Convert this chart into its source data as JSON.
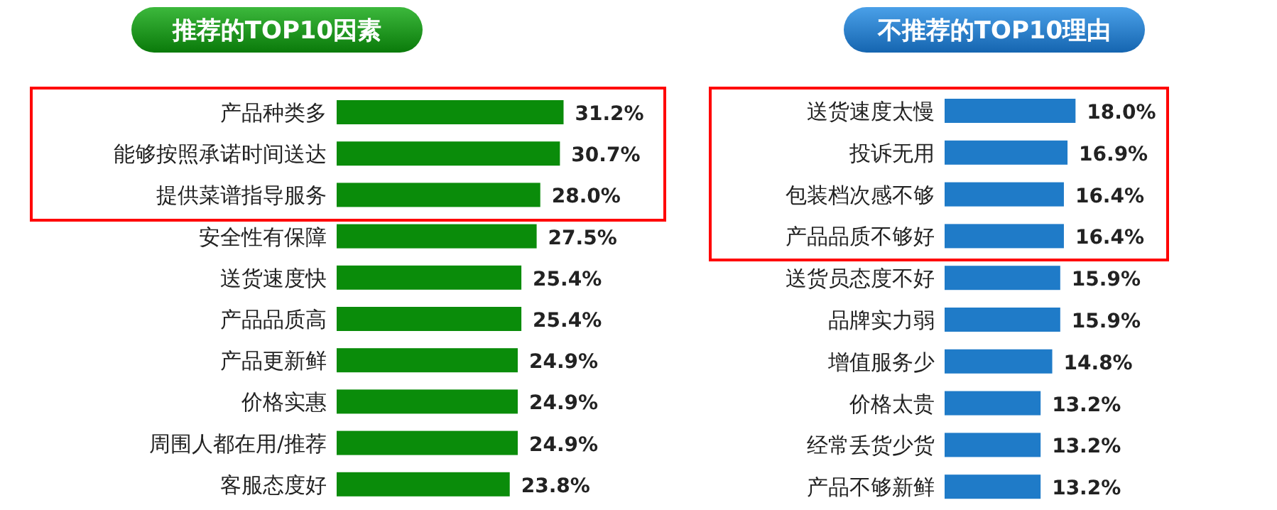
{
  "chart_data": [
    {
      "type": "bar",
      "orientation": "horizontal",
      "title": "推荐的TOP10因素",
      "categories": [
        "产品种类多",
        "能够按照承诺时间送达",
        "提供菜谱指导服务",
        "安全性有保障",
        "送货速度快",
        "产品品质高",
        "产品更新鲜",
        "价格实惠",
        "周围人都在用/推荐",
        "客服态度好"
      ],
      "color": "#0a8c0a",
      "values": [
        31.2,
        30.7,
        28.0,
        27.5,
        25.4,
        25.4,
        24.9,
        24.9,
        24.9,
        23.8
      ],
      "value_labels": [
        "31.2%",
        "30.7%",
        "28.0%",
        "27.5%",
        "25.4%",
        "25.4%",
        "24.9%",
        "24.9%",
        "24.9%",
        "23.8%"
      ]
    },
    {
      "type": "bar",
      "orientation": "horizontal",
      "title": "不推荐的TOP10理由",
      "categories": [
        "送货速度太慢",
        "投诉无用",
        "包装档次感不够",
        "产品品质不够好",
        "送货员态度不好",
        "品牌实力弱",
        "增值服务少",
        "价格太贵",
        "经常丢货少货",
        "产品不够新鲜"
      ],
      "color": "#1f7bc8",
      "values": [
        18.0,
        16.9,
        16.4,
        16.4,
        15.9,
        15.9,
        14.8,
        13.2,
        13.2,
        13.2
      ],
      "value_labels": [
        "18.0%",
        "16.9%",
        "16.4%",
        "16.4%",
        "15.9%",
        "15.9%",
        "14.8%",
        "13.2%",
        "13.2%",
        "13.2%"
      ]
    }
  ]
}
